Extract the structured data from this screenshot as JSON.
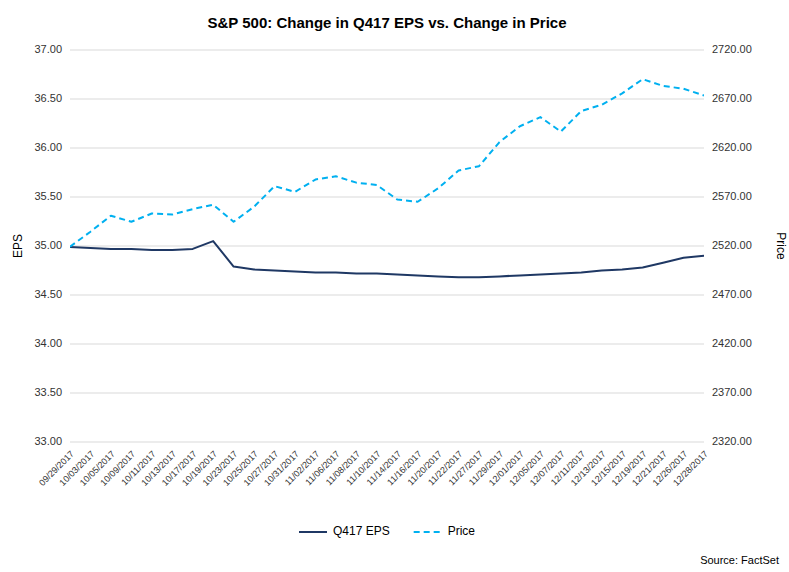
{
  "chart_data": {
    "type": "line",
    "title": "S&P 500: Change in Q417 EPS vs. Change in Price",
    "ylabel": "EPS",
    "y2label": "Price",
    "annotation": "Source: FactSet",
    "categories": [
      "09/29/2017",
      "10/03/2017",
      "10/05/2017",
      "10/09/2017",
      "10/11/2017",
      "10/13/2017",
      "10/17/2017",
      "10/19/2017",
      "10/23/2017",
      "10/25/2017",
      "10/27/2017",
      "10/31/2017",
      "11/02/2017",
      "11/06/2017",
      "11/08/2017",
      "11/10/2017",
      "11/14/2017",
      "11/16/2017",
      "11/20/2017",
      "11/22/2017",
      "11/27/2017",
      "11/29/2017",
      "12/01/2017",
      "12/05/2017",
      "12/07/2017",
      "12/11/2017",
      "12/13/2017",
      "12/15/2017",
      "12/19/2017",
      "12/21/2017",
      "12/26/2017",
      "12/28/2017"
    ],
    "series": [
      {
        "name": "Q417 EPS",
        "color": "#1f3864",
        "line_style": "solid",
        "values": [
          34.99,
          34.98,
          34.97,
          34.97,
          34.96,
          34.96,
          34.97,
          35.05,
          34.79,
          34.76,
          34.75,
          34.74,
          34.73,
          34.73,
          34.72,
          34.72,
          34.71,
          34.7,
          34.69,
          34.68,
          34.68,
          34.69,
          34.7,
          34.71,
          34.72,
          34.73,
          34.75,
          34.76,
          34.78,
          34.83,
          34.88,
          34.9
        ]
      },
      {
        "name": "Price",
        "color": "#00b0f0",
        "line_style": "dashed",
        "axis": "y2",
        "values": [
          2519.36,
          2534.58,
          2550.93,
          2544.73,
          2553.17,
          2552.07,
          2557.64,
          2562.1,
          2544.73,
          2560.1,
          2581.07,
          2575.26,
          2587.84,
          2591.13,
          2584.62,
          2582.3,
          2567.47,
          2565.12,
          2578.85,
          2597.08,
          2601.42,
          2626.07,
          2642.22,
          2651.5,
          2636.78,
          2657.7,
          2664.11,
          2675.81,
          2690.16,
          2683.34,
          2680.5,
          2673.61
        ]
      }
    ],
    "ylim": [
      33.0,
      37.0
    ],
    "yticks": [
      {
        "value": 33.0,
        "label": "33.00"
      },
      {
        "value": 33.5,
        "label": "33.50"
      },
      {
        "value": 34.0,
        "label": "34.00"
      },
      {
        "value": 34.5,
        "label": "34.50"
      },
      {
        "value": 35.0,
        "label": "35.00"
      },
      {
        "value": 35.5,
        "label": "35.50"
      },
      {
        "value": 36.0,
        "label": "36.00"
      },
      {
        "value": 36.5,
        "label": "36.50"
      },
      {
        "value": 37.0,
        "label": "37.00"
      }
    ],
    "y2lim": [
      2320.0,
      2720.0
    ],
    "y2ticks": [
      {
        "value": 2320.0,
        "label": "2320.00"
      },
      {
        "value": 2370.0,
        "label": "2370.00"
      },
      {
        "value": 2420.0,
        "label": "2420.00"
      },
      {
        "value": 2470.0,
        "label": "2470.00"
      },
      {
        "value": 2520.0,
        "label": "2520.00"
      },
      {
        "value": 2570.0,
        "label": "2570.00"
      },
      {
        "value": 2620.0,
        "label": "2620.00"
      },
      {
        "value": 2670.0,
        "label": "2670.00"
      },
      {
        "value": 2720.0,
        "label": "2720.00"
      }
    ],
    "grid": true,
    "legend": "bottom"
  }
}
